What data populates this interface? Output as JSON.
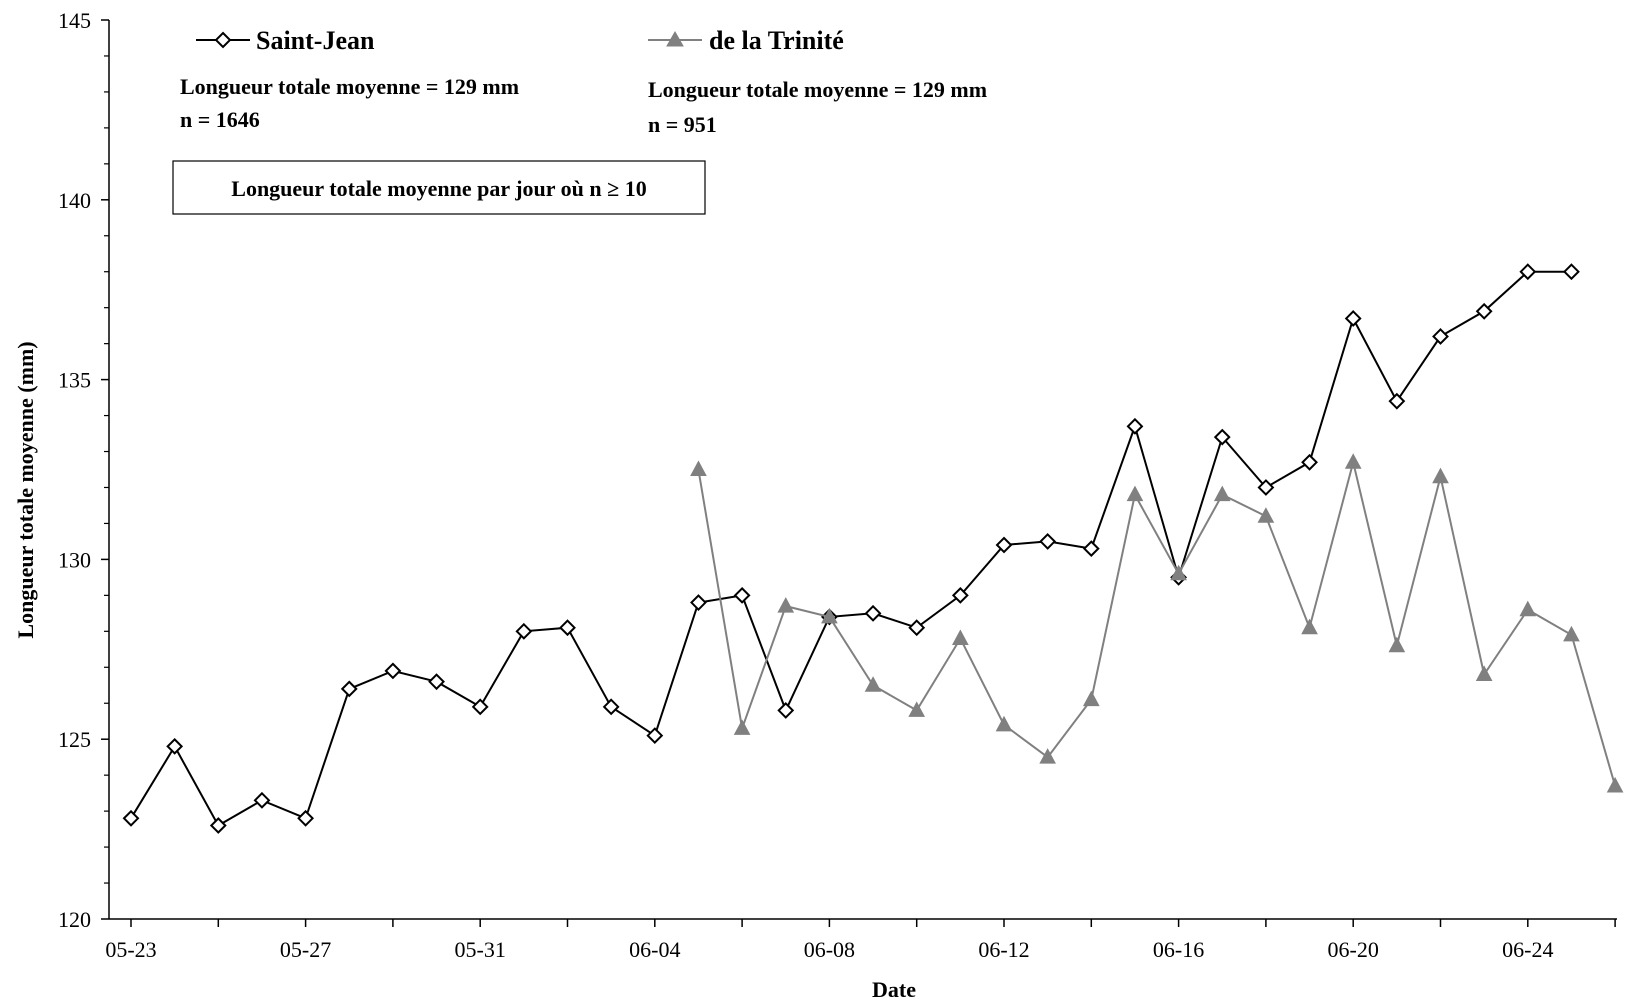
{
  "chart_data": {
    "type": "line",
    "xlabel": "Date",
    "ylabel": "Longueur totale moyenne (mm)",
    "ylim": [
      120,
      145
    ],
    "yticks": [
      120,
      125,
      130,
      135,
      140,
      145
    ],
    "x_range": [
      "2000-05-23",
      "2000-06-26"
    ],
    "x_tick_labels": [
      "05-23",
      "05-27",
      "05-31",
      "06-04",
      "06-08",
      "06-12",
      "06-16",
      "06-20",
      "06-24"
    ],
    "grid": false,
    "legend_position": "top-left",
    "series": [
      {
        "name": "Saint-Jean",
        "marker": "diamond-open",
        "color": "#000000",
        "points": [
          [
            "2000-05-23",
            122.8
          ],
          [
            "2000-05-24",
            124.8
          ],
          [
            "2000-05-25",
            122.6
          ],
          [
            "2000-05-26",
            123.3
          ],
          [
            "2000-05-27",
            122.8
          ],
          [
            "2000-05-28",
            126.4
          ],
          [
            "2000-05-29",
            126.9
          ],
          [
            "2000-05-30",
            126.6
          ],
          [
            "2000-05-31",
            125.9
          ],
          [
            "2000-06-01",
            128.0
          ],
          [
            "2000-06-02",
            128.1
          ],
          [
            "2000-06-03",
            125.9
          ],
          [
            "2000-06-04",
            125.1
          ],
          [
            "2000-06-05",
            128.8
          ],
          [
            "2000-06-06",
            129.0
          ],
          [
            "2000-06-07",
            125.8
          ],
          [
            "2000-06-08",
            128.4
          ],
          [
            "2000-06-09",
            128.5
          ],
          [
            "2000-06-10",
            128.1
          ],
          [
            "2000-06-11",
            129.0
          ],
          [
            "2000-06-12",
            130.4
          ],
          [
            "2000-06-13",
            130.5
          ],
          [
            "2000-06-14",
            130.3
          ],
          [
            "2000-06-15",
            133.7
          ],
          [
            "2000-06-16",
            129.5
          ],
          [
            "2000-06-17",
            133.4
          ],
          [
            "2000-06-18",
            132.0
          ],
          [
            "2000-06-19",
            132.7
          ],
          [
            "2000-06-20",
            136.7
          ],
          [
            "2000-06-21",
            134.4
          ],
          [
            "2000-06-22",
            136.2
          ],
          [
            "2000-06-23",
            136.9
          ],
          [
            "2000-06-24",
            138.0
          ],
          [
            "2000-06-25",
            138.0
          ]
        ]
      },
      {
        "name": "de la Trinité",
        "marker": "triangle-filled",
        "color": "#808080",
        "points": [
          [
            "2000-06-05",
            132.5
          ],
          [
            "2000-06-06",
            125.3
          ],
          [
            "2000-06-07",
            128.7
          ],
          [
            "2000-06-08",
            128.4
          ],
          [
            "2000-06-09",
            126.5
          ],
          [
            "2000-06-10",
            125.8
          ],
          [
            "2000-06-11",
            127.8
          ],
          [
            "2000-06-12",
            125.4
          ],
          [
            "2000-06-13",
            124.5
          ],
          [
            "2000-06-14",
            126.1
          ],
          [
            "2000-06-15",
            131.8
          ],
          [
            "2000-06-16",
            129.6
          ],
          [
            "2000-06-17",
            131.8
          ],
          [
            "2000-06-18",
            131.2
          ],
          [
            "2000-06-19",
            128.1
          ],
          [
            "2000-06-20",
            132.7
          ],
          [
            "2000-06-21",
            127.6
          ],
          [
            "2000-06-22",
            132.3
          ],
          [
            "2000-06-23",
            126.8
          ],
          [
            "2000-06-24",
            128.6
          ],
          [
            "2000-06-25",
            127.9
          ],
          [
            "2000-06-26",
            123.7
          ]
        ]
      }
    ],
    "annotations": {
      "saint_jean_mean": "Longueur totale moyenne = 129 mm",
      "saint_jean_n": "n = 1646",
      "trinite_mean": "Longueur totale moyenne = 129 mm",
      "trinite_n": "n = 951",
      "box_text": "Longueur totale moyenne par jour où n ≥ 10"
    }
  }
}
